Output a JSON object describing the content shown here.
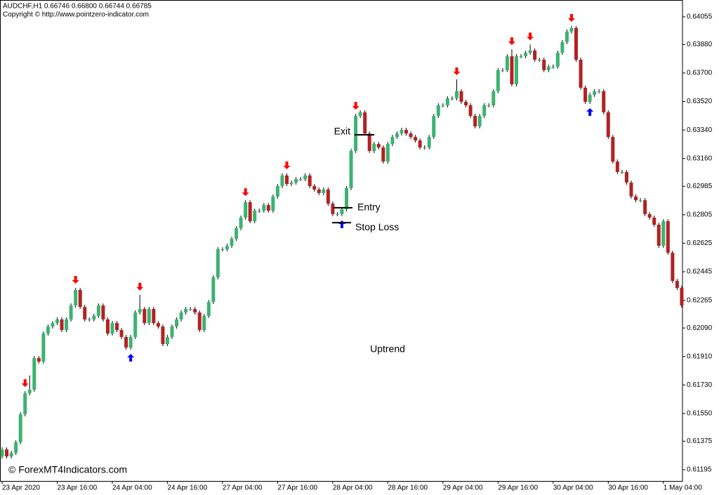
{
  "chart_data": {
    "type": "candlestick",
    "title": "AUDCHF,H1  0.66746 0.66800 0.66744 0.66785",
    "subtitle": "Copyright © http://www.pointzero-indicator.com",
    "watermark": "© ForexMT4Indicators.com",
    "label": "Uptrend",
    "categories": [
      "23 Apr 2020",
      null,
      null,
      null,
      null,
      null,
      null,
      null,
      null,
      null,
      null,
      null,
      "23 Apr 16:00",
      null,
      null,
      null,
      null,
      null,
      null,
      null,
      null,
      null,
      null,
      null,
      "24 Apr 04:00",
      null,
      null,
      null,
      null,
      null,
      null,
      null,
      null,
      null,
      null,
      null,
      "24 Apr 16:00",
      null,
      null,
      null,
      null,
      null,
      null,
      null,
      null,
      null,
      null,
      null,
      "27 Apr 04:00",
      null,
      null,
      null,
      null,
      null,
      null,
      null,
      null,
      null,
      null,
      null,
      "27 Apr 16:00",
      null,
      null,
      null,
      null,
      null,
      null,
      null,
      null,
      null,
      null,
      null,
      "28 Apr 04:00",
      null,
      null,
      null,
      null,
      null,
      null,
      null,
      null,
      null,
      null,
      null,
      "28 Apr 16:00",
      null,
      null,
      null,
      null,
      null,
      null,
      null,
      null,
      null,
      null,
      null,
      "29 Apr 04:00",
      null,
      null,
      null,
      null,
      null,
      null,
      null,
      null,
      null,
      null,
      null,
      "29 Apr 16:00",
      null,
      null,
      null,
      null,
      null,
      null,
      null,
      null,
      null,
      null,
      null,
      "30 Apr 04:00",
      null,
      null,
      null,
      null,
      null,
      null,
      null,
      null,
      null,
      null,
      null,
      "30 Apr 16:00",
      null,
      null,
      null,
      null,
      null,
      null,
      null,
      null,
      null,
      null,
      null,
      "1 May 04:00",
      null,
      null,
      null,
      null
    ],
    "open": [
      0.61279,
      0.61323,
      0.61279,
      0.61301,
      0.61368,
      0.61545,
      0.61678,
      0.617,
      0.619,
      0.61878,
      0.62055,
      0.62099,
      0.62121,
      0.62144,
      0.62077,
      0.62144,
      0.62232,
      0.6233,
      0.62223,
      0.62144,
      0.62144,
      0.62166,
      0.62232,
      0.62144,
      0.62055,
      0.62121,
      0.62077,
      0.62033,
      0.61966,
      0.62033,
      0.62188,
      0.6221,
      0.62121,
      0.6221,
      0.62121,
      0.62099,
      0.61988,
      0.62033,
      0.62099,
      0.62144,
      0.62188,
      0.6221,
      0.6221,
      0.62188,
      0.62077,
      0.62166,
      0.62254,
      0.6241,
      0.62587,
      0.62587,
      0.62609,
      0.62653,
      0.6272,
      0.62787,
      0.62884,
      0.62764,
      0.62831,
      0.62831,
      0.62866,
      0.62831,
      0.6292,
      0.62986,
      0.63053,
      0.62999,
      0.63008,
      0.6303,
      0.6303,
      0.63053,
      0.62986,
      0.62964,
      0.62942,
      0.62964,
      0.62875,
      0.62809,
      0.62809,
      0.6284,
      0.62973,
      0.63208,
      0.63429,
      0.63452,
      0.63318,
      0.63208,
      0.63252,
      0.6323,
      0.63141,
      0.63252,
      0.63296,
      0.63318,
      0.63341,
      0.63318,
      0.63296,
      0.63274,
      0.6323,
      0.6323,
      0.63296,
      0.63429,
      0.63496,
      0.63496,
      0.6354,
      0.6354,
      0.63585,
      0.63518,
      0.63496,
      0.63429,
      0.63363,
      0.63429,
      0.63496,
      0.63496,
      0.63585,
      0.63718,
      0.63718,
      0.63806,
      0.63629,
      0.63806,
      0.63806,
      0.63828,
      0.63842,
      0.63784,
      0.63784,
      0.63718,
      0.6374,
      0.6374,
      0.63828,
      0.63895,
      0.63962,
      0.63984,
      0.63784,
      0.63607,
      0.63518,
      0.63562,
      0.63585,
      0.63585,
      0.63452,
      0.63296,
      0.63141,
      0.63075,
      0.63075,
      0.63008,
      0.6292,
      0.62897,
      0.62897,
      0.62809,
      0.62787,
      0.62742,
      0.62609,
      0.62764,
      0.62565,
      0.62387,
      0.62343
    ],
    "high": [
      0.61336,
      0.61336,
      0.61314,
      0.61381,
      0.61558,
      0.61691,
      0.6179,
      0.61913,
      0.61913,
      0.62068,
      0.62112,
      0.62134,
      0.62157,
      0.62157,
      0.62157,
      0.62245,
      0.62343,
      0.62343,
      0.62236,
      0.62157,
      0.62179,
      0.62245,
      0.62245,
      0.62157,
      0.62134,
      0.62134,
      0.6209,
      0.62046,
      0.62046,
      0.62201,
      0.623,
      0.62223,
      0.62223,
      0.62223,
      0.62134,
      0.62112,
      0.62046,
      0.62112,
      0.62157,
      0.62201,
      0.62223,
      0.62223,
      0.62223,
      0.62201,
      0.62179,
      0.62267,
      0.62423,
      0.626,
      0.626,
      0.62622,
      0.62666,
      0.62733,
      0.628,
      0.62897,
      0.62897,
      0.62844,
      0.62844,
      0.62879,
      0.62879,
      0.62933,
      0.62999,
      0.63066,
      0.63066,
      0.63021,
      0.63043,
      0.63043,
      0.63066,
      0.63066,
      0.62999,
      0.62977,
      0.62977,
      0.62977,
      0.62888,
      0.62822,
      0.62853,
      0.62986,
      0.63221,
      0.63442,
      0.63465,
      0.63465,
      0.63331,
      0.63265,
      0.63265,
      0.63243,
      0.63265,
      0.63309,
      0.63331,
      0.63354,
      0.63354,
      0.63331,
      0.63309,
      0.63287,
      0.63243,
      0.63309,
      0.63442,
      0.63509,
      0.63509,
      0.63553,
      0.63553,
      0.6366,
      0.63598,
      0.63531,
      0.63509,
      0.63442,
      0.63442,
      0.63509,
      0.63509,
      0.63598,
      0.63731,
      0.63731,
      0.63819,
      0.6385,
      0.63819,
      0.63819,
      0.63841,
      0.6388,
      0.63855,
      0.63797,
      0.63797,
      0.63753,
      0.63753,
      0.63841,
      0.63908,
      0.63975,
      0.63997,
      0.63997,
      0.63797,
      0.6362,
      0.63575,
      0.63598,
      0.63598,
      0.63598,
      0.63465,
      0.63309,
      0.63154,
      0.63088,
      0.63088,
      0.63021,
      0.62933,
      0.6291,
      0.6291,
      0.62822,
      0.628,
      0.62755,
      0.62777,
      0.62777,
      0.62578,
      0.624,
      0.62356
    ],
    "low": [
      0.61266,
      0.61266,
      0.61266,
      0.61288,
      0.61355,
      0.61532,
      0.61665,
      0.61687,
      0.61865,
      0.61865,
      0.62042,
      0.62086,
      0.62108,
      0.62064,
      0.62064,
      0.62131,
      0.62219,
      0.6221,
      0.62131,
      0.62131,
      0.62131,
      0.62153,
      0.62131,
      0.62042,
      0.62042,
      0.62064,
      0.6202,
      0.61953,
      0.61953,
      0.6202,
      0.62175,
      0.62108,
      0.62108,
      0.62108,
      0.62086,
      0.61975,
      0.61975,
      0.6202,
      0.62086,
      0.62131,
      0.62175,
      0.62197,
      0.62175,
      0.62064,
      0.62064,
      0.62153,
      0.62241,
      0.62397,
      0.62574,
      0.62574,
      0.62596,
      0.6264,
      0.62707,
      0.62774,
      0.62751,
      0.62751,
      0.62818,
      0.62818,
      0.62818,
      0.62818,
      0.62907,
      0.62973,
      0.62986,
      0.62986,
      0.62995,
      0.63017,
      0.63017,
      0.62973,
      0.62951,
      0.62929,
      0.62929,
      0.62862,
      0.62796,
      0.62796,
      0.62796,
      0.62827,
      0.6296,
      0.63195,
      0.63416,
      0.63305,
      0.63195,
      0.63195,
      0.63217,
      0.63128,
      0.63128,
      0.63239,
      0.63283,
      0.63305,
      0.63305,
      0.63283,
      0.63261,
      0.63217,
      0.63217,
      0.63217,
      0.63283,
      0.63416,
      0.63483,
      0.63483,
      0.63527,
      0.63527,
      0.63505,
      0.63483,
      0.63416,
      0.6335,
      0.6335,
      0.63416,
      0.63483,
      0.63483,
      0.63572,
      0.63705,
      0.63705,
      0.63616,
      0.63616,
      0.63793,
      0.63793,
      0.63815,
      0.63771,
      0.63771,
      0.63705,
      0.63705,
      0.63727,
      0.63727,
      0.63815,
      0.63882,
      0.63949,
      0.63771,
      0.63594,
      0.63505,
      0.63505,
      0.63549,
      0.63572,
      0.63439,
      0.63283,
      0.63128,
      0.63062,
      0.63062,
      0.62995,
      0.62907,
      0.62884,
      0.62884,
      0.62796,
      0.62774,
      0.62729,
      0.62596,
      0.62596,
      0.62552,
      0.62374,
      0.6233,
      0.62219
    ],
    "close": [
      0.61323,
      0.61279,
      0.61301,
      0.61368,
      0.61545,
      0.61678,
      0.617,
      0.619,
      0.61878,
      0.62055,
      0.62099,
      0.62121,
      0.62144,
      0.62077,
      0.62144,
      0.62232,
      0.6233,
      0.62223,
      0.62144,
      0.62144,
      0.62166,
      0.62232,
      0.62144,
      0.62055,
      0.62121,
      0.62077,
      0.62033,
      0.61966,
      0.62033,
      0.62188,
      0.6221,
      0.62121,
      0.6221,
      0.62121,
      0.62099,
      0.61988,
      0.62033,
      0.62099,
      0.62144,
      0.62188,
      0.6221,
      0.6221,
      0.62188,
      0.62077,
      0.62166,
      0.62254,
      0.6241,
      0.62587,
      0.62587,
      0.62609,
      0.62653,
      0.6272,
      0.62787,
      0.62884,
      0.62764,
      0.62831,
      0.62831,
      0.62866,
      0.62831,
      0.6292,
      0.62986,
      0.63053,
      0.62999,
      0.63008,
      0.6303,
      0.6303,
      0.63053,
      0.62986,
      0.62964,
      0.62942,
      0.62964,
      0.62875,
      0.62809,
      0.62809,
      0.6284,
      0.62973,
      0.63208,
      0.63429,
      0.63452,
      0.63318,
      0.63208,
      0.63252,
      0.6323,
      0.63141,
      0.63252,
      0.63296,
      0.63318,
      0.63341,
      0.63318,
      0.63296,
      0.63274,
      0.6323,
      0.6323,
      0.63296,
      0.63429,
      0.63496,
      0.63496,
      0.6354,
      0.6354,
      0.63585,
      0.63518,
      0.63496,
      0.63429,
      0.63363,
      0.63429,
      0.63496,
      0.63496,
      0.63585,
      0.63718,
      0.63718,
      0.63806,
      0.63629,
      0.63806,
      0.63806,
      0.63828,
      0.63842,
      0.63784,
      0.63784,
      0.63718,
      0.6374,
      0.6374,
      0.63828,
      0.63895,
      0.63962,
      0.63984,
      0.63784,
      0.63607,
      0.63518,
      0.63562,
      0.63585,
      0.63585,
      0.63452,
      0.63296,
      0.63141,
      0.63075,
      0.63075,
      0.63008,
      0.6292,
      0.62897,
      0.62897,
      0.62809,
      0.62787,
      0.62742,
      0.62609,
      0.62764,
      0.62565,
      0.62387,
      0.62343,
      0.62232
    ],
    "up_color": "#3cb371",
    "down_color": "#b22222",
    "wick_color": "#000000",
    "down_arrows": [
      5,
      16,
      30,
      53,
      62,
      77,
      99,
      111,
      115,
      124
    ],
    "up_arrows": [
      28,
      74,
      128
    ],
    "down_arrow_color": "#ff0000",
    "up_arrow_color": "#0000ff",
    "annotations": [
      {
        "text": "Exit",
        "value": 0.6331
      },
      {
        "text": "Entry",
        "value": 0.62849
      },
      {
        "text": "Stop Loss",
        "value": 0.62755
      }
    ],
    "ylim": [
      0.61124,
      0.64161
    ],
    "yticks": [
      0.64055,
      {
        "value": 0.6388,
        "label": "0.63880"
      },
      {
        "value": 0.637,
        "label": "0.63700"
      },
      {
        "value": 0.6352,
        "label": "0.63520"
      },
      {
        "value": 0.6334,
        "label": "0.63340"
      },
      {
        "value": 0.6316,
        "label": "0.63160"
      },
      0.62985,
      0.62805,
      0.62625,
      0.62445,
      0.62265,
      {
        "value": 0.6209,
        "label": "0.62090"
      },
      {
        "value": 0.6191,
        "label": "0.61910"
      },
      {
        "value": 0.6173,
        "label": "0.61730"
      },
      {
        "value": 0.6155,
        "label": "0.61550"
      },
      0.61375,
      0.61195
    ]
  }
}
